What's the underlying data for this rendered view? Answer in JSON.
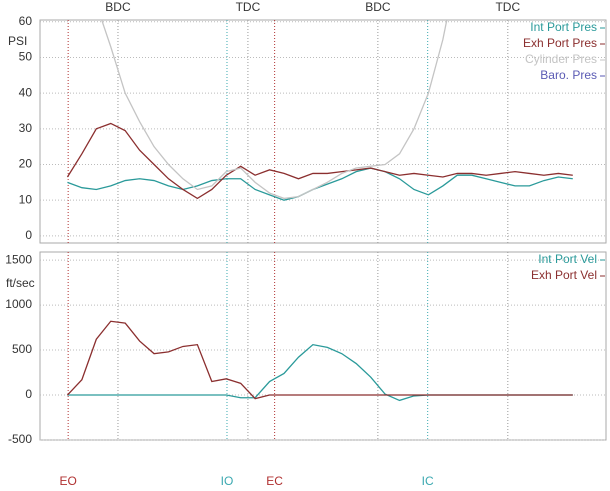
{
  "chart_data": [
    {
      "type": "line",
      "y_label": "PSI",
      "x": [
        110,
        130,
        150,
        170,
        190,
        210,
        230,
        250,
        270,
        290,
        310,
        330,
        350,
        370,
        390,
        410,
        430,
        450,
        470,
        490,
        510,
        530,
        550,
        570,
        590,
        610,
        630,
        650,
        670,
        690,
        710,
        730,
        750,
        770,
        790,
        810
      ],
      "xlim": [
        72,
        856
      ],
      "ylim": [
        -2,
        60.5
      ],
      "yticks": [
        0,
        10,
        20,
        30,
        40,
        50,
        60
      ],
      "grid": true,
      "legend": "top-right",
      "markers": [
        {
          "label": "BDC",
          "x": 180,
          "color": "#999999"
        },
        {
          "label": "TDC",
          "x": 360,
          "color": "#999999"
        },
        {
          "label": "BDC",
          "x": 540,
          "color": "#999999"
        },
        {
          "label": "TDC",
          "x": 720,
          "color": "#999999"
        }
      ],
      "series": [
        {
          "name": "Int Port Pres",
          "color": "#2a9a9a",
          "values": [
            15,
            13.5,
            13,
            14,
            15.5,
            16,
            15.5,
            14,
            13,
            14,
            15.5,
            16,
            16,
            13,
            11.5,
            10,
            11,
            13,
            14.5,
            16,
            18,
            19,
            18,
            16,
            13,
            11.5,
            14,
            17,
            17,
            16,
            15,
            14,
            14,
            15.5,
            16.5,
            16
          ]
        },
        {
          "name": "Exh Port Pres",
          "color": "#8b2f2f",
          "values": [
            16.5,
            23,
            30,
            31.5,
            29.5,
            24,
            20,
            16,
            13,
            10.5,
            13,
            17,
            19.5,
            17,
            18.5,
            17.5,
            16,
            17.5,
            17.5,
            18,
            18.5,
            19,
            18,
            17,
            17.5,
            17,
            16.5,
            17.5,
            17.5,
            17,
            17.5,
            18,
            17.5,
            17,
            17.5,
            17
          ]
        },
        {
          "name": "Cylinder Pres",
          "color": "#c4c4c4",
          "values": [
            null,
            null,
            65,
            53,
            40,
            32,
            25,
            20,
            16,
            13,
            14,
            18,
            19,
            15,
            12,
            10.5,
            11,
            13,
            15,
            17.5,
            19,
            19.5,
            20,
            23,
            30,
            40,
            55,
            75,
            null,
            null,
            null,
            null,
            null,
            null,
            null,
            null
          ]
        },
        {
          "name": "Baro. Pres",
          "color": "#5a5ab4"
        }
      ]
    },
    {
      "type": "line",
      "y_label": "ft/sec",
      "x": [
        110,
        130,
        150,
        170,
        190,
        210,
        230,
        250,
        270,
        290,
        310,
        330,
        350,
        370,
        390,
        410,
        430,
        450,
        470,
        490,
        510,
        530,
        550,
        570,
        590,
        610,
        630,
        650,
        670,
        690,
        710,
        730,
        750,
        770,
        790,
        810
      ],
      "xlim": [
        72,
        856
      ],
      "ylim": [
        -500,
        1590
      ],
      "yticks": [
        -500,
        0,
        500,
        1000,
        1500
      ],
      "grid": true,
      "legend": "top-right",
      "markers": [
        {
          "label": "EO",
          "x": 111,
          "color": "#b03030"
        },
        {
          "label": "IO",
          "x": 331,
          "color": "#3aa8b0"
        },
        {
          "label": "EC",
          "x": 397,
          "color": "#b03030"
        },
        {
          "label": "IC",
          "x": 609,
          "color": "#3aa8b0"
        }
      ],
      "series": [
        {
          "name": "Int Port Vel",
          "color": "#2a9a9a",
          "values": [
            0,
            0,
            0,
            0,
            0,
            0,
            0,
            0,
            0,
            0,
            0,
            0,
            -30,
            -30,
            150,
            240,
            420,
            560,
            530,
            460,
            350,
            200,
            10,
            -60,
            -10,
            0,
            0,
            0,
            0,
            0,
            0,
            0,
            0,
            0,
            0,
            0
          ]
        },
        {
          "name": "Exh Port Vel",
          "color": "#8b2f2f",
          "values": [
            0,
            170,
            620,
            820,
            800,
            600,
            460,
            480,
            540,
            560,
            150,
            180,
            130,
            -40,
            0,
            0,
            0,
            0,
            0,
            0,
            0,
            0,
            0,
            0,
            0,
            0,
            0,
            0,
            0,
            0,
            0,
            0,
            0,
            0,
            0,
            0
          ]
        }
      ]
    }
  ]
}
